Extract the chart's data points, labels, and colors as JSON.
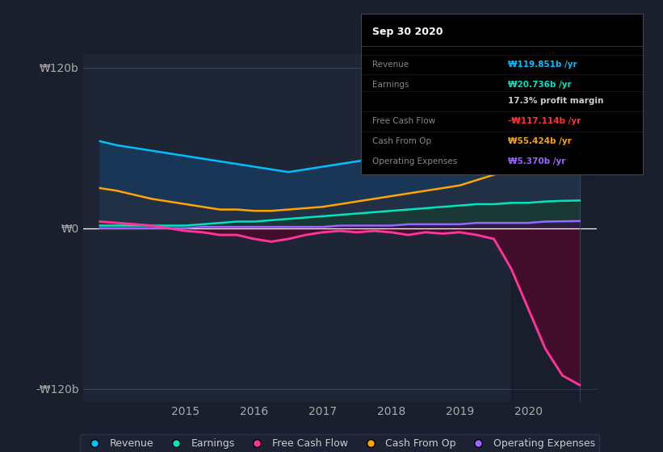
{
  "bg_color": "#1a1f2e",
  "plot_bg_color": "#1e2535",
  "ylabel_120": "₩120b",
  "ylabel_0": "₩0",
  "ylabel_neg120": "-₩120b",
  "xlim": [
    2013.5,
    2021.0
  ],
  "ylim": [
    -130,
    130
  ],
  "yticks": [
    -120,
    0,
    120
  ],
  "xtick_labels": [
    "2015",
    "2016",
    "2017",
    "2018",
    "2019",
    "2020"
  ],
  "xtick_positions": [
    2015,
    2016,
    2017,
    2018,
    2019,
    2020
  ],
  "revenue_color": "#00bfff",
  "revenue_fill": "#1a3a5c",
  "earnings_color": "#00e5c0",
  "earnings_fill": "#1a3a35",
  "fcf_color": "#ff3399",
  "cashop_color": "#ffa500",
  "opex_color": "#9966ff",
  "legend_bg": "#1e2535",
  "legend_border": "#333355",
  "x_revenue": [
    2013.75,
    2014.0,
    2014.25,
    2014.5,
    2014.75,
    2015.0,
    2015.25,
    2015.5,
    2015.75,
    2016.0,
    2016.25,
    2016.5,
    2016.75,
    2017.0,
    2017.25,
    2017.5,
    2017.75,
    2018.0,
    2018.25,
    2018.5,
    2018.75,
    2019.0,
    2019.25,
    2019.5,
    2019.75,
    2020.0,
    2020.25,
    2020.5,
    2020.75
  ],
  "y_revenue": [
    65,
    62,
    60,
    58,
    56,
    54,
    52,
    50,
    48,
    46,
    44,
    42,
    44,
    46,
    48,
    50,
    52,
    56,
    62,
    68,
    75,
    82,
    90,
    98,
    108,
    115,
    118,
    120,
    119.851
  ],
  "x_earnings": [
    2013.75,
    2014.0,
    2014.25,
    2014.5,
    2014.75,
    2015.0,
    2015.25,
    2015.5,
    2015.75,
    2016.0,
    2016.25,
    2016.5,
    2016.75,
    2017.0,
    2017.25,
    2017.5,
    2017.75,
    2018.0,
    2018.25,
    2018.5,
    2018.75,
    2019.0,
    2019.25,
    2019.5,
    2019.75,
    2020.0,
    2020.25,
    2020.5,
    2020.75
  ],
  "y_earnings": [
    2,
    2,
    2,
    2,
    2,
    2,
    3,
    4,
    5,
    5,
    6,
    7,
    8,
    9,
    10,
    11,
    12,
    13,
    14,
    15,
    16,
    17,
    18,
    18,
    19,
    19,
    20,
    20.5,
    20.736
  ],
  "x_fcf": [
    2013.75,
    2014.0,
    2014.25,
    2014.5,
    2014.75,
    2015.0,
    2015.25,
    2015.5,
    2015.75,
    2016.0,
    2016.25,
    2016.5,
    2016.75,
    2017.0,
    2017.25,
    2017.5,
    2017.75,
    2018.0,
    2018.25,
    2018.5,
    2018.75,
    2019.0,
    2019.25,
    2019.5,
    2019.75,
    2020.0,
    2020.25,
    2020.5,
    2020.75
  ],
  "y_fcf": [
    5,
    4,
    3,
    2,
    0,
    -2,
    -3,
    -5,
    -5,
    -8,
    -10,
    -8,
    -5,
    -3,
    -2,
    -3,
    -2,
    -3,
    -5,
    -3,
    -4,
    -3,
    -5,
    -8,
    -30,
    -60,
    -90,
    -110,
    -117.114
  ],
  "x_cashop": [
    2013.75,
    2014.0,
    2014.25,
    2014.5,
    2014.75,
    2015.0,
    2015.25,
    2015.5,
    2015.75,
    2016.0,
    2016.25,
    2016.5,
    2016.75,
    2017.0,
    2017.25,
    2017.5,
    2017.75,
    2018.0,
    2018.25,
    2018.5,
    2018.75,
    2019.0,
    2019.25,
    2019.5,
    2019.75,
    2020.0,
    2020.25,
    2020.5,
    2020.75
  ],
  "y_cashop": [
    30,
    28,
    25,
    22,
    20,
    18,
    16,
    14,
    14,
    13,
    13,
    14,
    15,
    16,
    18,
    20,
    22,
    24,
    26,
    28,
    30,
    32,
    36,
    40,
    44,
    50,
    54,
    55,
    55.424
  ],
  "x_opex": [
    2013.75,
    2014.0,
    2014.25,
    2014.5,
    2014.75,
    2015.0,
    2015.25,
    2015.5,
    2015.75,
    2016.0,
    2016.25,
    2016.5,
    2016.75,
    2017.0,
    2017.25,
    2017.5,
    2017.75,
    2018.0,
    2018.25,
    2018.5,
    2018.75,
    2019.0,
    2019.25,
    2019.5,
    2019.75,
    2020.0,
    2020.25,
    2020.5,
    2020.75
  ],
  "y_opex": [
    0,
    0,
    0,
    0,
    0,
    0,
    1,
    1,
    1,
    1,
    1,
    1,
    1,
    1,
    2,
    2,
    2,
    2,
    3,
    3,
    3,
    3,
    4,
    4,
    4,
    4,
    5,
    5.2,
    5.37
  ],
  "tooltip_title": "Sep 30 2020",
  "tooltip_items": [
    {
      "label": "Revenue",
      "value": "₩119.851b /yr",
      "value_color": "#00bfff"
    },
    {
      "label": "Earnings",
      "value": "₩20.736b /yr",
      "value_color": "#00e5c0"
    },
    {
      "label": "",
      "value": "17.3% profit margin",
      "value_color": "#cccccc"
    },
    {
      "label": "Free Cash Flow",
      "value": "-₩117.114b /yr",
      "value_color": "#ff3333"
    },
    {
      "label": "Cash From Op",
      "value": "₩55.424b /yr",
      "value_color": "#ffa500"
    },
    {
      "label": "Operating Expenses",
      "value": "₩5.370b /yr",
      "value_color": "#9966ff"
    }
  ],
  "legend_items": [
    {
      "label": "Revenue",
      "color": "#00bfff"
    },
    {
      "label": "Earnings",
      "color": "#00e5c0"
    },
    {
      "label": "Free Cash Flow",
      "color": "#ff3399"
    },
    {
      "label": "Cash From Op",
      "color": "#ffa500"
    },
    {
      "label": "Operating Expenses",
      "color": "#9966ff"
    }
  ]
}
